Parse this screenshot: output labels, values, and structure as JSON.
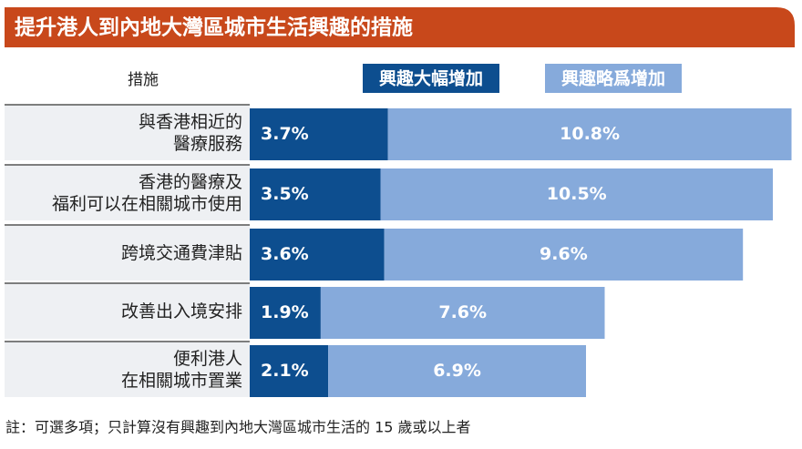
{
  "chart_data": {
    "type": "stacked-bar-horizontal",
    "title": "提升港人到內地大灣區城市生活興趣的措施",
    "category_header": "措施",
    "categories": [
      [
        "與香港相近的",
        "醫療服務"
      ],
      [
        "香港的醫療及",
        "福利可以在相關城市使用"
      ],
      [
        "跨境交通費津貼"
      ],
      [
        "改善出入境安排"
      ],
      [
        "便利港人",
        "在相關城市置業"
      ]
    ],
    "series": [
      {
        "name": "興趣大幅增加",
        "color": "#0d4e8f",
        "values": [
          3.7,
          3.5,
          3.6,
          1.9,
          2.1
        ],
        "value_labels": [
          "3.7%",
          "3.5%",
          "3.6%",
          "1.9%",
          "2.1%"
        ]
      },
      {
        "name": "興趣略爲增加",
        "color": "#86aadb",
        "values": [
          10.8,
          10.5,
          9.6,
          7.6,
          6.9
        ],
        "value_labels": [
          "10.8%",
          "10.5%",
          "9.6%",
          "7.6%",
          "6.9%"
        ]
      }
    ],
    "note": "註：可選多項；只計算沒有興趣到內地大灣區城市生活的 15 歲或以上者"
  }
}
